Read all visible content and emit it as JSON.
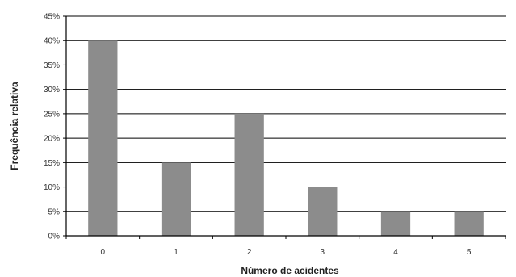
{
  "chart_data": {
    "type": "bar",
    "title": "",
    "xlabel": "Número de acidentes",
    "ylabel": "Frequência relativa",
    "categories": [
      "0",
      "1",
      "2",
      "3",
      "4",
      "5"
    ],
    "values": [
      40,
      15,
      25,
      10,
      5,
      5
    ],
    "ylim": [
      0,
      45
    ],
    "yticks": [
      0,
      5,
      10,
      15,
      20,
      25,
      30,
      35,
      40,
      45
    ],
    "ytick_suffix": "%",
    "grid": true,
    "legend": "none",
    "colors": {
      "bar": "#8c8c8c",
      "grid": "#000000",
      "axis": "#000000"
    }
  }
}
